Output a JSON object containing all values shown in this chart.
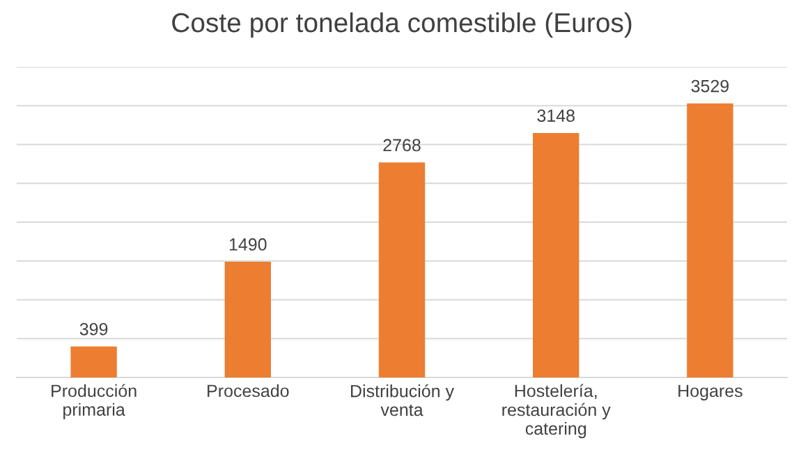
{
  "chart_data": {
    "type": "bar",
    "title": "Coste por tonelada comestible (Euros)",
    "categories": [
      "Producción primaria",
      "Procesado",
      "Distribución y venta",
      "Hostelería, restauración y catering",
      "Hogares"
    ],
    "values": [
      399,
      1490,
      2768,
      3148,
      3529
    ],
    "color": "#ed7d31",
    "ylim": [
      0,
      4000
    ],
    "yticks": [
      {
        "value": 0,
        "label": null
      },
      {
        "value": 500,
        "label": null
      },
      {
        "value": 1000,
        "label": null
      },
      {
        "value": 1500,
        "label": null
      },
      {
        "value": 2000,
        "label": null
      },
      {
        "value": 2500,
        "label": null
      },
      {
        "value": 3000,
        "label": null
      },
      {
        "value": 3500,
        "label": null
      },
      {
        "value": 4000,
        "label": null
      }
    ],
    "grid": "y",
    "tick_labels": "x",
    "data_labels": true
  }
}
